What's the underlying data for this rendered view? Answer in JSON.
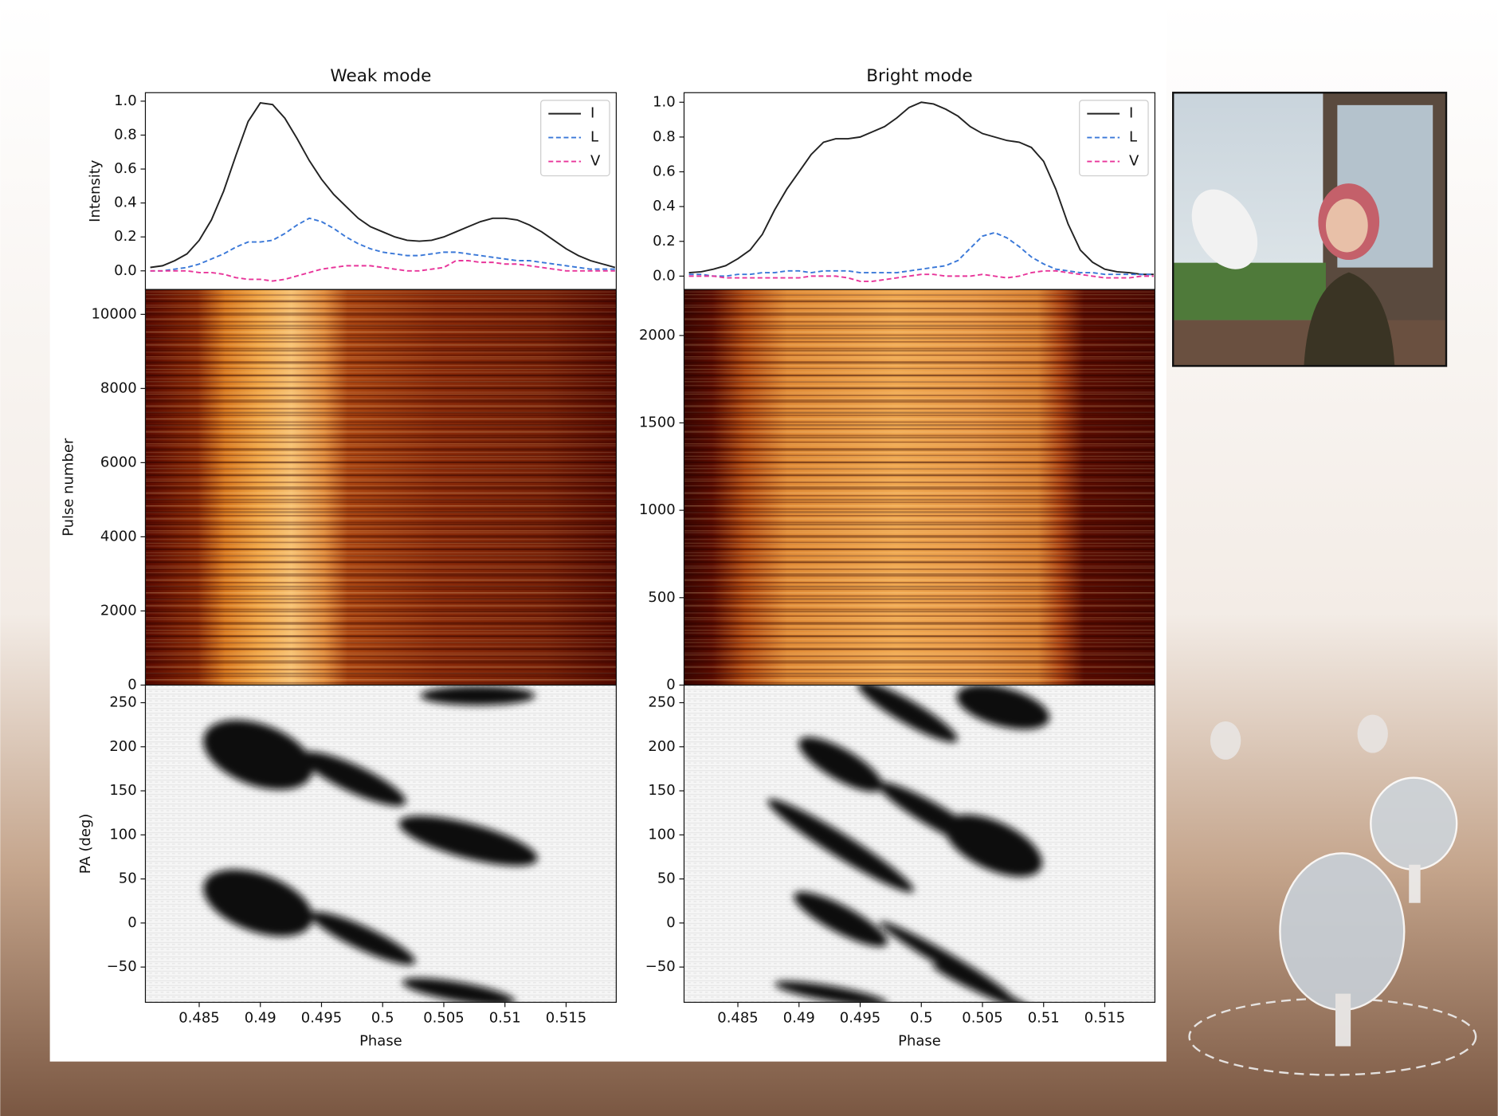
{
  "chart_data": [
    {
      "type": "line",
      "title": "Weak mode",
      "ylabel": "Intensity",
      "legend": "upper right",
      "x": [
        0.481,
        0.482,
        0.483,
        0.484,
        0.485,
        0.486,
        0.487,
        0.488,
        0.489,
        0.49,
        0.491,
        0.492,
        0.493,
        0.494,
        0.495,
        0.496,
        0.497,
        0.498,
        0.499,
        0.5,
        0.501,
        0.502,
        0.503,
        0.504,
        0.505,
        0.506,
        0.507,
        0.508,
        0.509,
        0.51,
        0.511,
        0.512,
        0.513,
        0.514,
        0.515,
        0.516,
        0.517,
        0.518,
        0.519
      ],
      "xlim": [
        0.4806,
        0.5191
      ],
      "ylim": [
        -0.11,
        1.05
      ],
      "yticks": [
        {
          "value": 0,
          "label": "0.0"
        },
        0.2,
        0.4,
        0.6,
        0.8,
        {
          "value": 1,
          "label": "1.0"
        }
      ],
      "series": [
        {
          "name": "I",
          "color": "#222222",
          "dash": "solid",
          "values": [
            0.02,
            0.03,
            0.06,
            0.1,
            0.18,
            0.3,
            0.47,
            0.68,
            0.88,
            0.99,
            0.98,
            0.9,
            0.78,
            0.65,
            0.54,
            0.45,
            0.38,
            0.31,
            0.26,
            0.23,
            0.2,
            0.18,
            0.175,
            0.18,
            0.2,
            0.23,
            0.26,
            0.29,
            0.31,
            0.31,
            0.3,
            0.27,
            0.23,
            0.18,
            0.13,
            0.09,
            0.06,
            0.04,
            0.02
          ]
        },
        {
          "name": "L",
          "color": "#3a78d8",
          "dash": "dashed",
          "values": [
            0,
            0,
            0.01,
            0.02,
            0.04,
            0.07,
            0.1,
            0.14,
            0.17,
            0.17,
            0.18,
            0.22,
            0.27,
            0.31,
            0.29,
            0.25,
            0.2,
            0.16,
            0.13,
            0.11,
            0.1,
            0.09,
            0.09,
            0.1,
            0.11,
            0.11,
            0.1,
            0.09,
            0.08,
            0.07,
            0.06,
            0.06,
            0.05,
            0.04,
            0.03,
            0.02,
            0.01,
            0.01,
            0.01
          ]
        },
        {
          "name": "V",
          "color": "#e8359a",
          "dash": "dashed",
          "values": [
            0,
            0,
            0,
            0,
            -0.01,
            -0.01,
            -0.02,
            -0.04,
            -0.05,
            -0.05,
            -0.06,
            -0.05,
            -0.03,
            -0.01,
            0.01,
            0.02,
            0.03,
            0.03,
            0.03,
            0.02,
            0.01,
            0,
            0,
            0.01,
            0.02,
            0.06,
            0.06,
            0.05,
            0.05,
            0.04,
            0.04,
            0.03,
            0.02,
            0.01,
            0,
            0,
            0,
            0,
            0
          ]
        }
      ]
    },
    {
      "type": "heatmap",
      "ylabel": "Pulse number",
      "ylim": [
        0,
        10670
      ],
      "yticks": [
        0,
        2000,
        4000,
        6000,
        8000,
        10000
      ]
    },
    {
      "type": "heatmap",
      "ylabel": "PA (deg)",
      "xlabel": "Phase",
      "xlim": [
        0.4806,
        0.5191
      ],
      "xticks": [
        0.485,
        0.49,
        0.495,
        0.5,
        0.505,
        0.51,
        0.515
      ],
      "ylim": [
        -90,
        270
      ],
      "yticks": [
        {
          "value": -50,
          "label": "−50"
        },
        0,
        50,
        100,
        150,
        200,
        250
      ]
    },
    {
      "type": "line",
      "title": "Bright mode",
      "legend": "upper right",
      "x": [
        0.481,
        0.482,
        0.483,
        0.484,
        0.485,
        0.486,
        0.487,
        0.488,
        0.489,
        0.49,
        0.491,
        0.492,
        0.493,
        0.494,
        0.495,
        0.496,
        0.497,
        0.498,
        0.499,
        0.5,
        0.501,
        0.502,
        0.503,
        0.504,
        0.505,
        0.506,
        0.507,
        0.508,
        0.509,
        0.51,
        0.511,
        0.512,
        0.513,
        0.514,
        0.515,
        0.516,
        0.517,
        0.518,
        0.519
      ],
      "xlim": [
        0.4806,
        0.5191
      ],
      "ylim": [
        -0.077,
        1.055
      ],
      "yticks": [
        {
          "value": 0,
          "label": "0.0"
        },
        0.2,
        0.4,
        0.6,
        0.8,
        {
          "value": 1,
          "label": "1.0"
        }
      ],
      "series": [
        {
          "name": "I",
          "color": "#222222",
          "dash": "solid",
          "values": [
            0.02,
            0.025,
            0.04,
            0.06,
            0.1,
            0.15,
            0.24,
            0.38,
            0.5,
            0.6,
            0.7,
            0.77,
            0.79,
            0.79,
            0.8,
            0.83,
            0.86,
            0.91,
            0.97,
            1.0,
            0.99,
            0.96,
            0.92,
            0.86,
            0.82,
            0.8,
            0.78,
            0.77,
            0.74,
            0.66,
            0.5,
            0.3,
            0.15,
            0.08,
            0.04,
            0.025,
            0.02,
            0.01,
            0.01
          ]
        },
        {
          "name": "L",
          "color": "#3a78d8",
          "dash": "dashed",
          "values": [
            0.01,
            0.01,
            0,
            0,
            0.01,
            0.01,
            0.02,
            0.02,
            0.03,
            0.03,
            0.02,
            0.03,
            0.03,
            0.03,
            0.02,
            0.02,
            0.02,
            0.02,
            0.03,
            0.04,
            0.05,
            0.06,
            0.09,
            0.16,
            0.23,
            0.25,
            0.22,
            0.17,
            0.11,
            0.07,
            0.04,
            0.03,
            0.02,
            0.02,
            0.01,
            0.01,
            0.01,
            0.01,
            0.01
          ]
        },
        {
          "name": "V",
          "color": "#e8359a",
          "dash": "dashed",
          "values": [
            0,
            0,
            0,
            -0.01,
            -0.01,
            -0.01,
            -0.01,
            -0.01,
            -0.01,
            -0.01,
            0,
            0,
            0,
            -0.01,
            -0.03,
            -0.03,
            -0.02,
            -0.01,
            0,
            0.01,
            0.01,
            0,
            0,
            0,
            0.01,
            0,
            -0.01,
            0,
            0.02,
            0.03,
            0.03,
            0.02,
            0.01,
            0,
            -0.01,
            -0.01,
            -0.01,
            0,
            0
          ]
        }
      ]
    },
    {
      "type": "heatmap",
      "ylim": [
        0,
        2263
      ],
      "yticks": [
        0,
        500,
        1000,
        1500,
        2000
      ]
    },
    {
      "type": "heatmap",
      "xlabel": "Phase",
      "xlim": [
        0.4806,
        0.5191
      ],
      "xticks": [
        0.485,
        0.49,
        0.495,
        0.5,
        0.505,
        0.51,
        0.515
      ],
      "ylim": [
        -90,
        270
      ],
      "yticks": [
        {
          "value": -50,
          "label": "−50"
        },
        0,
        50,
        100,
        150,
        200,
        250
      ]
    }
  ]
}
